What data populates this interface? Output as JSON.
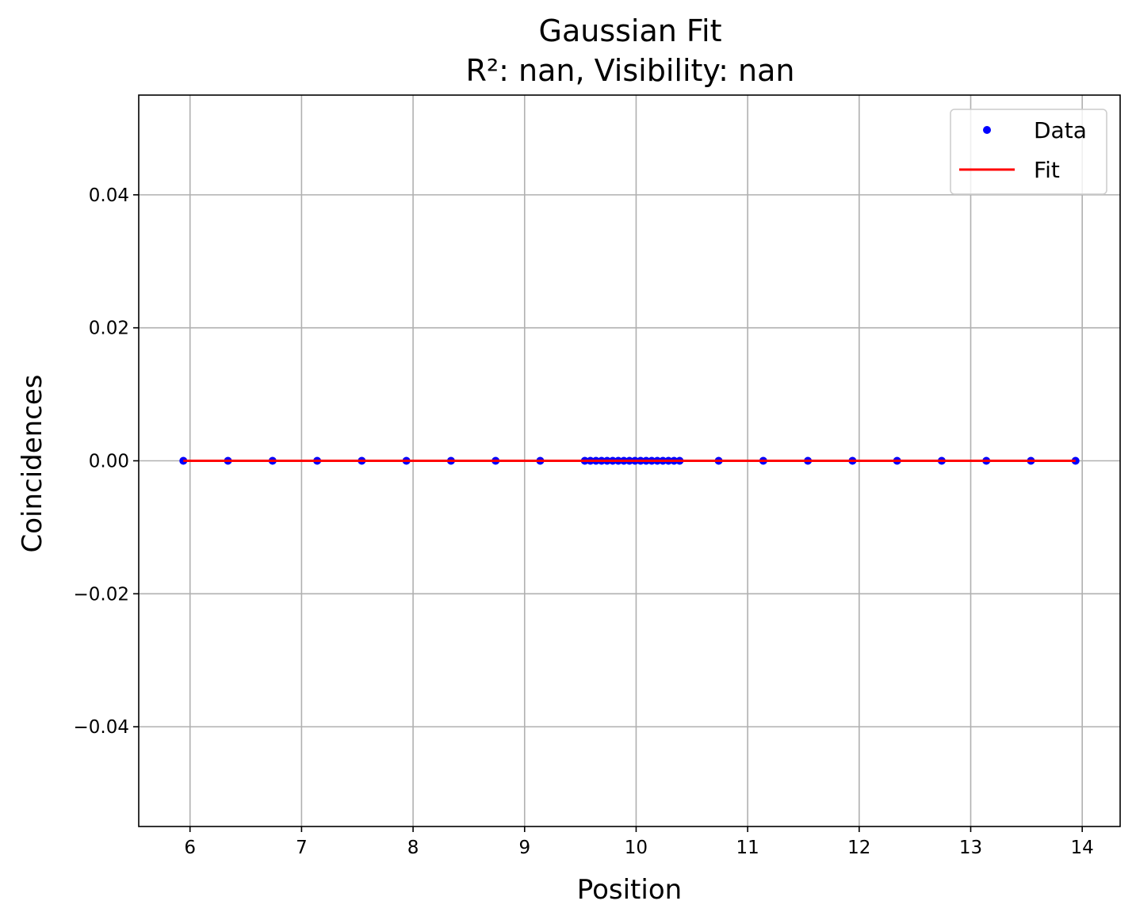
{
  "chart_data": {
    "type": "scatter",
    "title": "Gaussian Fit",
    "subtitle": "R²: nan, Visibility: nan",
    "xlabel": "Position",
    "ylabel": "Coincidences",
    "xlim": [
      5.54,
      14.34
    ],
    "ylim": [
      -0.055,
      0.055
    ],
    "xticks": [
      6,
      7,
      8,
      9,
      10,
      11,
      12,
      13,
      14
    ],
    "xtick_labels": [
      "6",
      "7",
      "8",
      "9",
      "10",
      "11",
      "12",
      "13",
      "14"
    ],
    "yticks": [
      -0.04,
      -0.02,
      0.0,
      0.02,
      0.04
    ],
    "ytick_labels": [
      "−0.04",
      "−0.02",
      "0.00",
      "0.02",
      "0.04"
    ],
    "grid": true,
    "legend_position": "top-right",
    "series": [
      {
        "name": "Data",
        "kind": "points",
        "color": "#0000ff",
        "x": [
          5.94,
          6.34,
          6.74,
          7.14,
          7.54,
          7.94,
          8.34,
          8.74,
          9.14,
          9.54,
          9.59,
          9.64,
          9.69,
          9.74,
          9.79,
          9.84,
          9.89,
          9.94,
          9.99,
          10.04,
          10.09,
          10.14,
          10.19,
          10.24,
          10.29,
          10.34,
          10.39,
          10.74,
          11.14,
          11.54,
          11.94,
          12.34,
          12.74,
          13.14,
          13.54,
          13.94
        ],
        "y": [
          0,
          0,
          0,
          0,
          0,
          0,
          0,
          0,
          0,
          0,
          0,
          0,
          0,
          0,
          0,
          0,
          0,
          0,
          0,
          0,
          0,
          0,
          0,
          0,
          0,
          0,
          0,
          0,
          0,
          0,
          0,
          0,
          0,
          0,
          0,
          0
        ]
      },
      {
        "name": "Fit",
        "kind": "line",
        "color": "#ff0000",
        "x": [
          5.94,
          13.94
        ],
        "y": [
          0,
          0
        ]
      }
    ]
  }
}
